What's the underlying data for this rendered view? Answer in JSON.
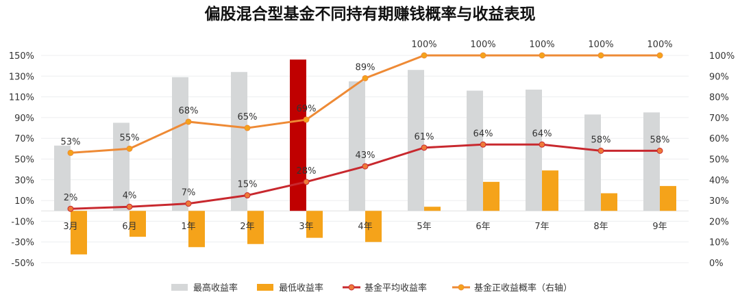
{
  "chart_data": {
    "type": "bar",
    "title": "偏股混合型基金不同持有期赚钱概率与收益表现",
    "categories": [
      "3月",
      "6月",
      "1年",
      "2年",
      "3年",
      "4年",
      "5年",
      "6年",
      "7年",
      "8年",
      "9年"
    ],
    "y_left": {
      "min": -50,
      "max": 150,
      "step": 20,
      "format": "%"
    },
    "y_right": {
      "min": 0,
      "max": 100,
      "step": 10,
      "format": "%"
    },
    "grid": true,
    "legend_position": "bottom",
    "highlight_category": "3年",
    "highlight_color": "#C00000",
    "series": [
      {
        "name": "最高收益率",
        "type": "bar",
        "axis": "left",
        "color": "#D5D7D8",
        "values": [
          63,
          85,
          129,
          134,
          146,
          125,
          136,
          116,
          117,
          93,
          95
        ]
      },
      {
        "name": "最低收益率",
        "type": "bar",
        "axis": "left",
        "color": "#F5A31A",
        "values": [
          -42,
          -25,
          -35,
          -32,
          -26,
          -30,
          4,
          28,
          39,
          17,
          24
        ]
      },
      {
        "name": "基金平均收益率",
        "type": "line",
        "axis": "left",
        "color": "#C8282E",
        "marker_color": "#EE7B3A",
        "values": [
          2,
          4,
          7,
          15,
          28,
          43,
          61,
          64,
          64,
          58,
          58
        ],
        "labels": [
          "2%",
          "4%",
          "7%",
          "15%",
          "28%",
          "43%",
          "61%",
          "64%",
          "64%",
          "58%",
          "58%"
        ]
      },
      {
        "name": "基金正收益概率（右轴）",
        "type": "line",
        "axis": "right",
        "color": "#EE8A35",
        "marker_color": "#F5A31A",
        "values": [
          53,
          55,
          68,
          65,
          69,
          89,
          100,
          100,
          100,
          100,
          100
        ],
        "labels": [
          "53%",
          "55%",
          "68%",
          "65%",
          "69%",
          "89%",
          "100%",
          "100%",
          "100%",
          "100%",
          "100%"
        ]
      }
    ]
  }
}
